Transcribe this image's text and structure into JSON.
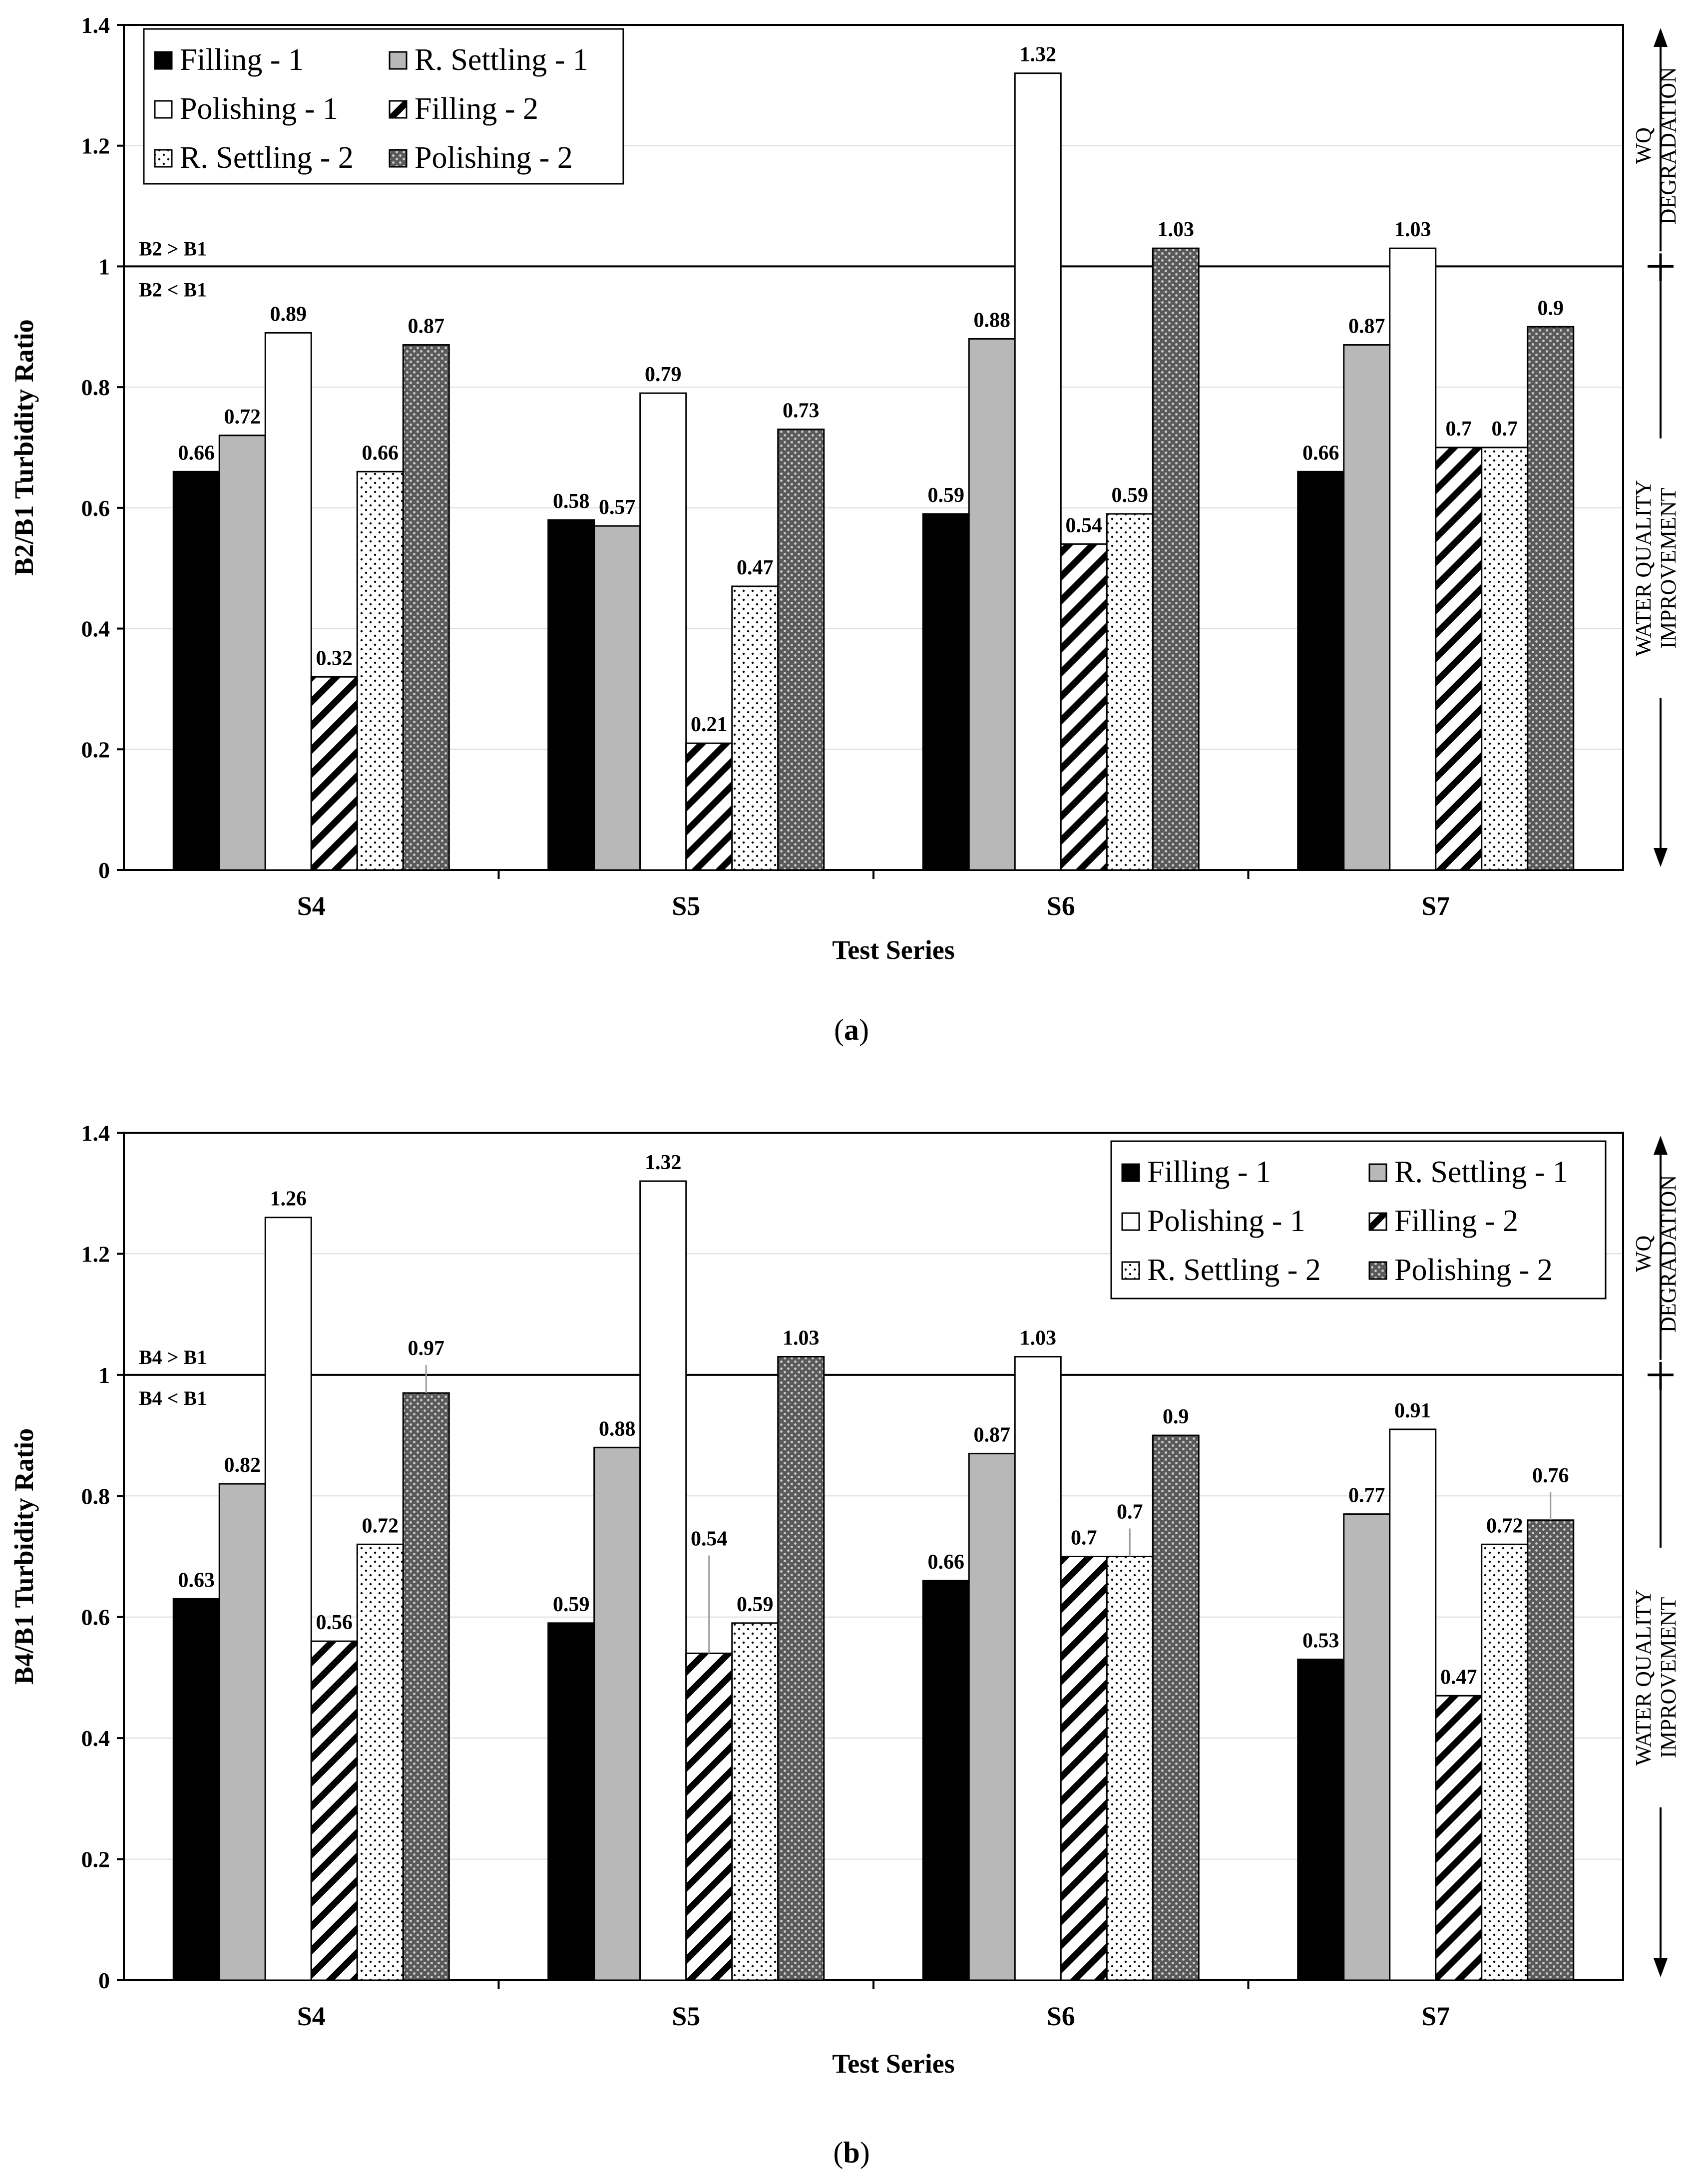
{
  "chart_data": [
    {
      "type": "bar",
      "panel_caption": "a",
      "ylabel": "B2/B1 Turbidity Ratio",
      "xlabel": "Test Series",
      "ylim": [
        0,
        1.4
      ],
      "yticks": [
        "0",
        "0.2",
        "0.4",
        "0.6",
        "0.8",
        "1",
        "1.2",
        "1.4"
      ],
      "categories": [
        "S4",
        "S5",
        "S6",
        "S7"
      ],
      "series": [
        {
          "name": "Filling - 1",
          "values": [
            0.66,
            0.58,
            0.59,
            0.66
          ],
          "labels": [
            "0.66",
            "0.58",
            "0.59",
            "0.66"
          ]
        },
        {
          "name": "R. Settling - 1",
          "values": [
            0.72,
            0.57,
            0.88,
            0.87
          ],
          "labels": [
            "0.72",
            "0.57",
            "0.88",
            "0.87"
          ]
        },
        {
          "name": "Polishing - 1",
          "values": [
            0.89,
            0.79,
            1.32,
            1.03
          ],
          "labels": [
            "0.89",
            "0.79",
            "1.32",
            "1.03"
          ]
        },
        {
          "name": "Filling - 2",
          "values": [
            0.32,
            0.21,
            0.54,
            0.7
          ],
          "labels": [
            "0.32",
            "0.21",
            "0.54",
            "0.7"
          ]
        },
        {
          "name": "R. Settling - 2",
          "values": [
            0.66,
            0.47,
            0.59,
            0.7
          ],
          "labels": [
            "0.66",
            "0.47",
            "0.59",
            "0.7"
          ]
        },
        {
          "name": "Polishing - 2",
          "values": [
            0.87,
            0.73,
            1.03,
            0.9
          ],
          "labels": [
            "0.87",
            "0.73",
            "1.03",
            "0.9"
          ]
        }
      ],
      "reference_line": 1,
      "ref_label_above": "B2 > B1",
      "ref_label_below": "B2 < B1",
      "side_label_top": [
        "WQ",
        "DEGRADATION"
      ],
      "side_label_bottom": [
        "WATER QUALITY",
        "IMPROVEMENT"
      ],
      "legend_position": "top-left"
    },
    {
      "type": "bar",
      "panel_caption": "b",
      "ylabel": "B4/B1 Turbidity Ratio",
      "xlabel": "Test Series",
      "ylim": [
        0,
        1.4
      ],
      "yticks": [
        "0",
        "0.2",
        "0.4",
        "0.6",
        "0.8",
        "1",
        "1.2",
        "1.4"
      ],
      "categories": [
        "S4",
        "S5",
        "S6",
        "S7"
      ],
      "series": [
        {
          "name": "Filling - 1",
          "values": [
            0.63,
            0.59,
            0.66,
            0.53
          ],
          "labels": [
            "0.63",
            "0.59",
            "0.66",
            "0.53"
          ]
        },
        {
          "name": "R. Settling - 1",
          "values": [
            0.82,
            0.88,
            0.87,
            0.77
          ],
          "labels": [
            "0.82",
            "0.88",
            "0.87",
            "0.77"
          ]
        },
        {
          "name": "Polishing - 1",
          "values": [
            1.26,
            1.32,
            1.03,
            0.91
          ],
          "labels": [
            "1.26",
            "1.32",
            "1.03",
            "0.91"
          ]
        },
        {
          "name": "Filling - 2",
          "values": [
            0.56,
            0.54,
            0.7,
            0.47
          ],
          "labels": [
            "0.56",
            "0.54",
            "0.7",
            "0.47"
          ]
        },
        {
          "name": "R. Settling - 2",
          "values": [
            0.72,
            0.59,
            0.7,
            0.72
          ],
          "labels": [
            "0.72",
            "0.59",
            "0.7",
            "0.72"
          ]
        },
        {
          "name": "Polishing - 2",
          "values": [
            0.97,
            1.03,
            0.9,
            0.76
          ],
          "labels": [
            "0.97",
            "1.03",
            "0.9",
            "0.76"
          ]
        }
      ],
      "reference_line": 1,
      "ref_label_above": "B4 > B1",
      "ref_label_below": "B4 < B1",
      "side_label_top": [
        "WQ",
        "DEGRADATION"
      ],
      "side_label_bottom": [
        "WATER QUALITY",
        "IMPROVEMENT"
      ],
      "legend_position": "top-right"
    }
  ]
}
